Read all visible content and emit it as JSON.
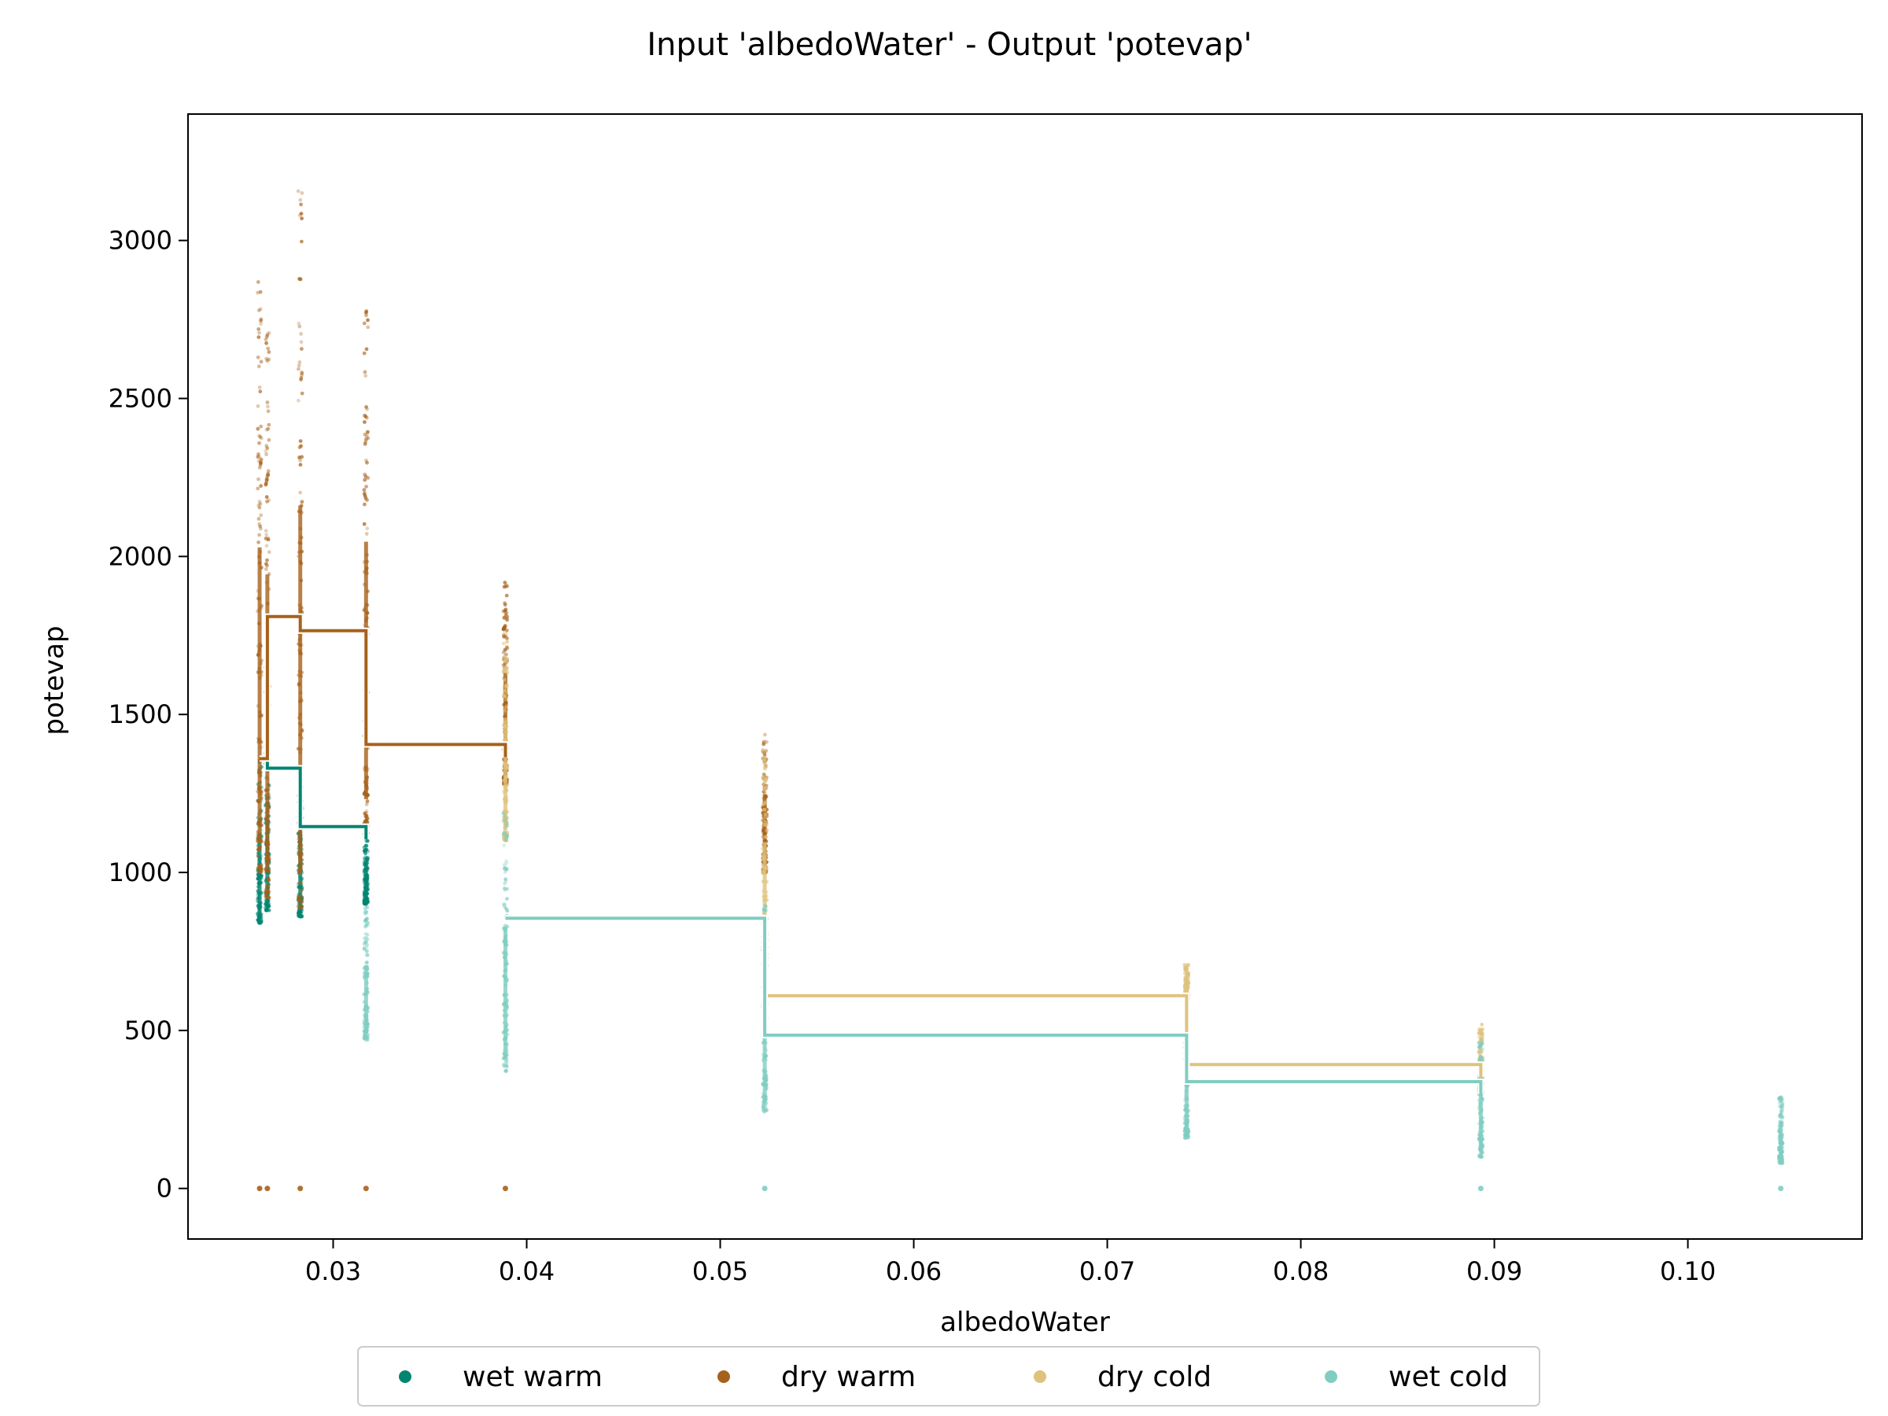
{
  "chart_data": {
    "type": "scatter",
    "title": "Input 'albedoWater' - Output 'potevap'",
    "xlabel": "albedoWater",
    "ylabel": "potevap",
    "xlim": [
      0.0225,
      0.109
    ],
    "ylim": [
      -160,
      3400
    ],
    "xticks": [
      0.03,
      0.04,
      0.05,
      0.06,
      0.07,
      0.08,
      0.09,
      0.1
    ],
    "xtick_labels": [
      "0.03",
      "0.04",
      "0.05",
      "0.06",
      "0.07",
      "0.08",
      "0.09",
      "0.10"
    ],
    "yticks": [
      0,
      500,
      1000,
      1500,
      2000,
      2500,
      3000
    ],
    "ytick_labels": [
      "0",
      "500",
      "1000",
      "1500",
      "2000",
      "2500",
      "3000"
    ],
    "grid": false,
    "legend_position": "bottom-center",
    "series": [
      {
        "name": "wet warm",
        "color": "#018571",
        "step_x": [
          0.0262,
          0.0266,
          0.0283,
          0.0317
        ],
        "step_y": [
          1360,
          1330,
          1145
        ],
        "scatter": [
          {
            "x": 0.0262,
            "ymin": 840,
            "ymax": 1360
          },
          {
            "x": 0.0266,
            "ymin": 880,
            "ymax": 1400
          },
          {
            "x": 0.0283,
            "ymin": 860,
            "ymax": 1330
          },
          {
            "x": 0.0317,
            "ymin": 900,
            "ymax": 1150
          }
        ]
      },
      {
        "name": "dry warm",
        "color": "#a6611a",
        "step_x": [
          0.0262,
          0.0266,
          0.0283,
          0.0317,
          0.0389
        ],
        "step_y": [
          1360,
          1810,
          1765,
          1405
        ],
        "scatter": [
          {
            "x": 0.0262,
            "ymin": 1000,
            "ymax": 2870
          },
          {
            "x": 0.0266,
            "ymin": 920,
            "ymax": 2780
          },
          {
            "x": 0.0283,
            "ymin": 880,
            "ymax": 3210
          },
          {
            "x": 0.0317,
            "ymin": 1150,
            "ymax": 2780
          },
          {
            "x": 0.0389,
            "ymin": 1280,
            "ymax": 1920
          },
          {
            "x": 0.0523,
            "ymin": 1000,
            "ymax": 1450
          }
        ],
        "zero_points_x": [
          0.0262,
          0.0266,
          0.0283,
          0.0317,
          0.0389
        ]
      },
      {
        "name": "dry cold",
        "color": "#dfc27d",
        "step_x": [
          0.0389,
          0.0523,
          0.0741,
          0.0893
        ],
        "step_y": [
          855,
          610,
          392
        ],
        "scatter": [
          {
            "x": 0.0389,
            "ymin": 1100,
            "ymax": 1770
          },
          {
            "x": 0.0523,
            "ymin": 700,
            "ymax": 1420
          },
          {
            "x": 0.0741,
            "ymin": 600,
            "ymax": 710
          },
          {
            "x": 0.0893,
            "ymin": 300,
            "ymax": 520
          }
        ]
      },
      {
        "name": "wet cold",
        "color": "#80cdc1",
        "step_x": [
          0.0389,
          0.0523,
          0.0741,
          0.0893
        ],
        "step_y": [
          855,
          485,
          338
        ],
        "scatter": [
          {
            "x": 0.0317,
            "ymin": 470,
            "ymax": 900
          },
          {
            "x": 0.0389,
            "ymin": 370,
            "ymax": 1200
          },
          {
            "x": 0.0523,
            "ymin": 240,
            "ymax": 900
          },
          {
            "x": 0.0741,
            "ymin": 160,
            "ymax": 480
          },
          {
            "x": 0.0893,
            "ymin": 100,
            "ymax": 470
          },
          {
            "x": 0.1048,
            "ymin": 80,
            "ymax": 290
          }
        ],
        "zero_points_x": [
          0.0523,
          0.0893,
          0.1048
        ]
      }
    ]
  }
}
